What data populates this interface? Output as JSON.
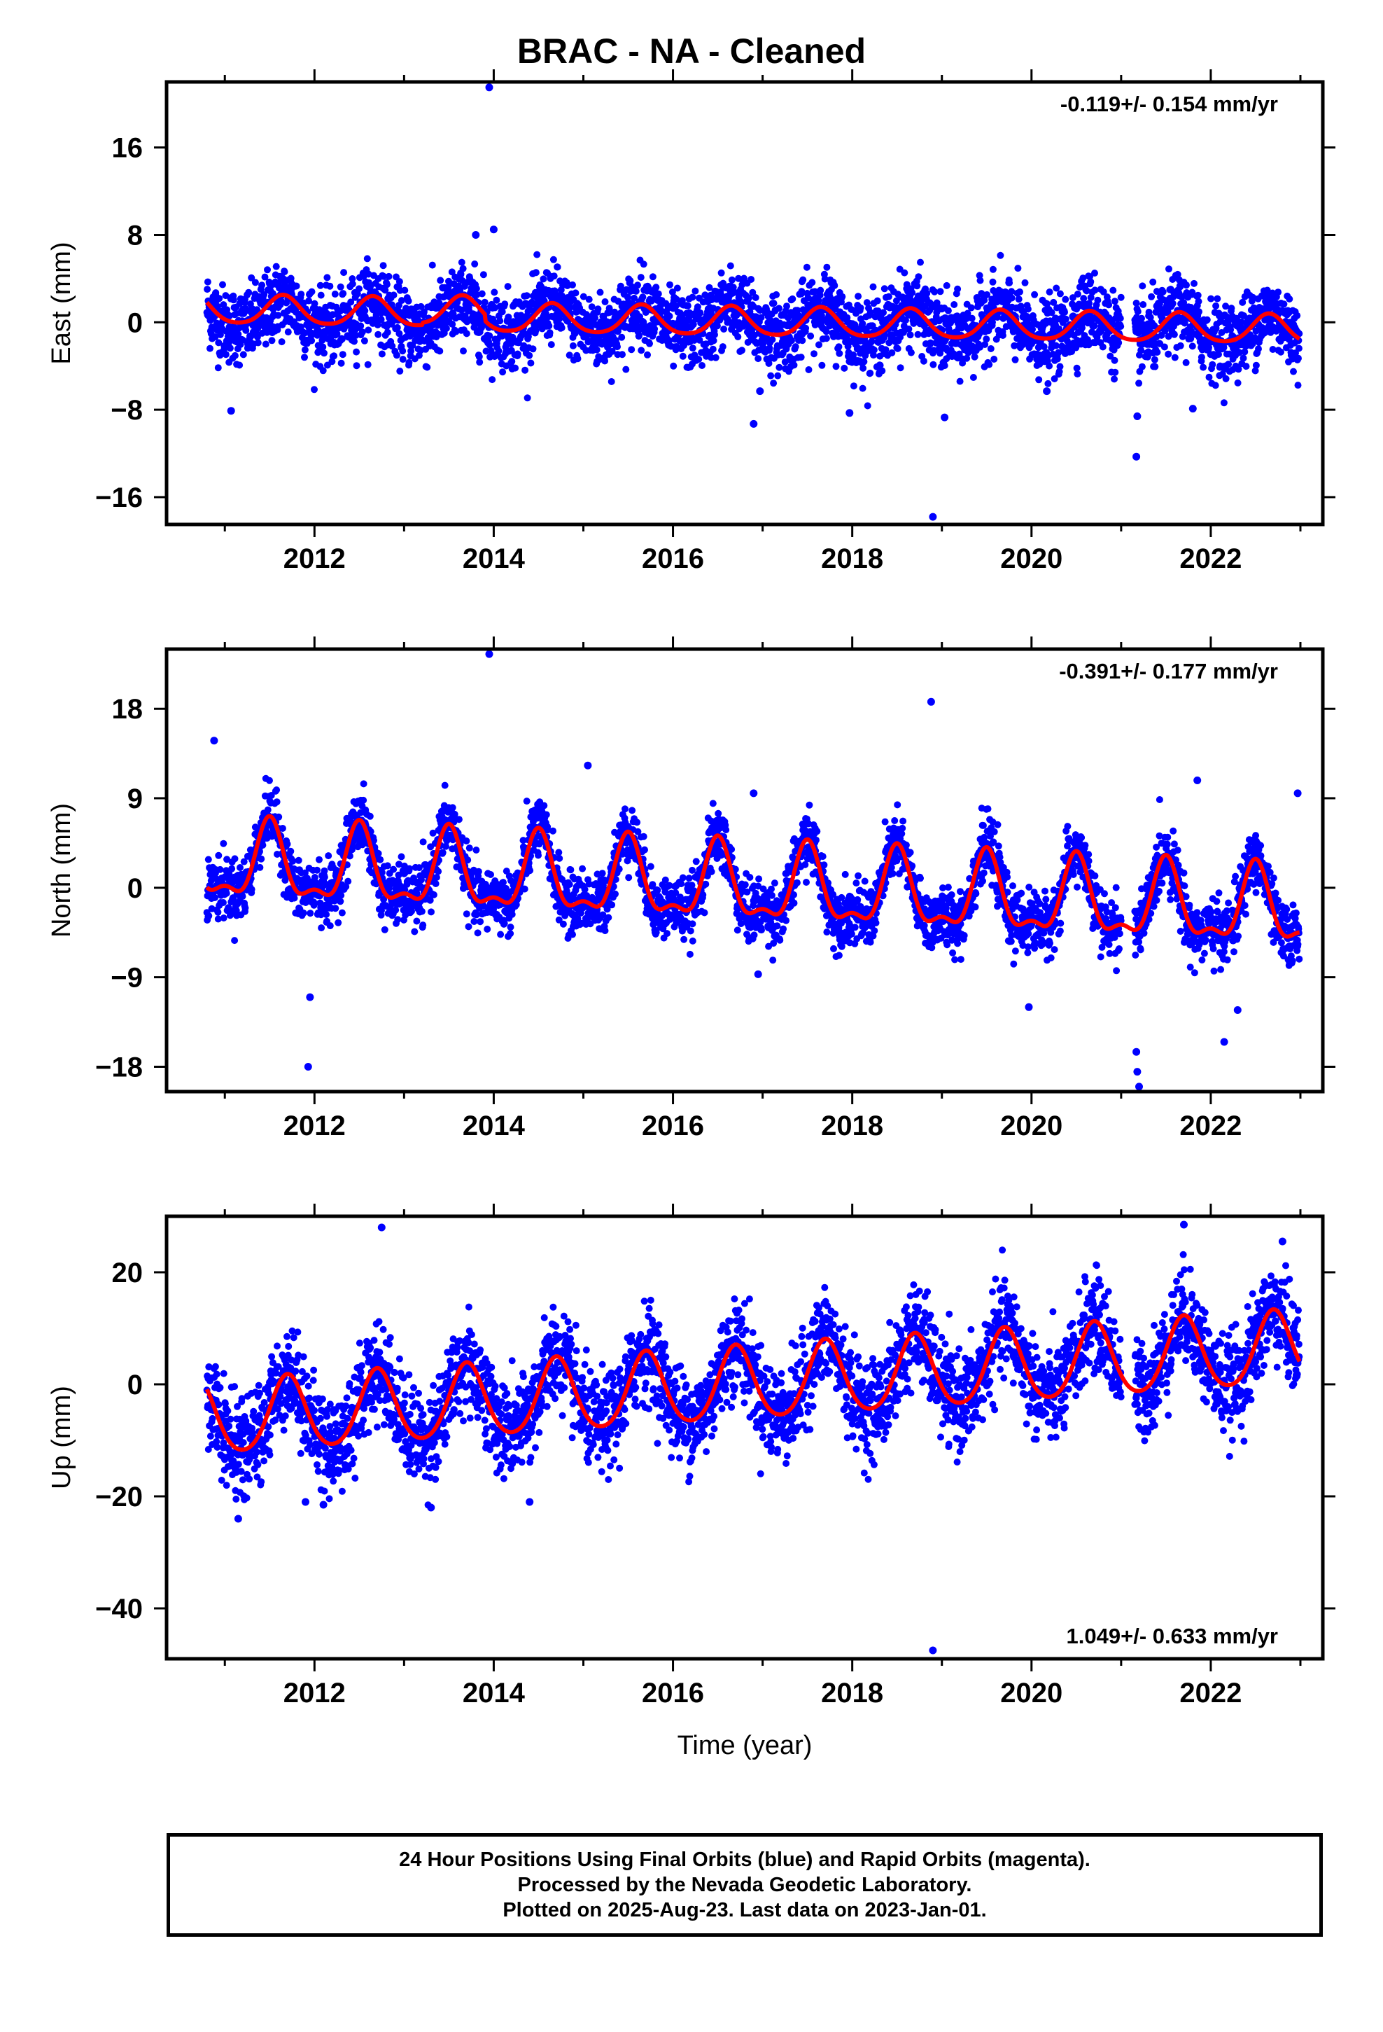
{
  "page": {
    "title": "BRAC  - NA - Cleaned",
    "xlabel": "Time (year)"
  },
  "footer": {
    "lines": [
      "24 Hour Positions Using Final Orbits (blue) and Rapid Orbits (magenta).",
      "Processed by the Nevada Geodetic Laboratory.",
      "Plotted on 2025-Aug-23. Last data on 2023-Jan-01."
    ]
  },
  "colors": {
    "points": "#0000ff",
    "model": "#ff0000",
    "axis": "#000000"
  },
  "chart_data": [
    {
      "type": "scatter",
      "component": "East",
      "ylabel": "East (mm)",
      "rate_text": "-0.119+/- 0.154 mm/yr",
      "rate_position": "top-right",
      "xlim": [
        2010.35,
        2023.25
      ],
      "ylim": [
        -18.5,
        22.0
      ],
      "xticks": [
        2012,
        2014,
        2016,
        2018,
        2020,
        2022
      ],
      "yticks": [
        16,
        8,
        0,
        -8,
        -16
      ],
      "ytick_labels": [
        "16",
        "8",
        "0",
        "−8",
        "−16"
      ],
      "series": [
        {
          "kind": "daily-positions",
          "x_range": [
            2010.8,
            2022.99
          ],
          "gap": [
            2021.0,
            2021.15
          ],
          "scatter_rms": 1.7,
          "trend_rate": -0.119,
          "annual_amplitude": 1.3,
          "annual_peak_phase": 0.65,
          "semiannual_amplitude": 0.2,
          "outliers": [
            [
              2013.95,
              21.5
            ],
            [
              2014.0,
              8.5
            ],
            [
              2013.8,
              8.0
            ],
            [
              2011.07,
              -8.1
            ],
            [
              2016.9,
              -9.3
            ],
            [
              2017.97,
              -8.3
            ],
            [
              2018.9,
              -17.8
            ],
            [
              2019.03,
              -8.7
            ],
            [
              2021.17,
              -12.3
            ],
            [
              2021.18,
              -8.6
            ],
            [
              2021.8,
              -7.9
            ],
            [
              2016.97,
              -6.3
            ],
            [
              2020.17,
              -6.3
            ]
          ]
        },
        {
          "kind": "model",
          "pieces": [
            {
              "x_range": [
                2010.8,
                2013.2
              ],
              "offset": 0.4
            },
            {
              "x_range": [
                2013.2,
                2013.9
              ],
              "offset": 0.6
            },
            {
              "x_range": [
                2013.9,
                2022.99
              ],
              "offset": 0.0
            }
          ]
        }
      ]
    },
    {
      "type": "scatter",
      "component": "North",
      "ylabel": "North (mm)",
      "rate_text": "-0.391+/- 0.177 mm/yr",
      "rate_position": "top-right",
      "xlim": [
        2010.35,
        2023.25
      ],
      "ylim": [
        -20.5,
        24.0
      ],
      "xticks": [
        2012,
        2014,
        2016,
        2018,
        2020,
        2022
      ],
      "yticks": [
        18,
        9,
        0,
        -9,
        -18
      ],
      "ytick_labels": [
        "18",
        "9",
        "0",
        "−9",
        "−18"
      ],
      "series": [
        {
          "kind": "daily-positions",
          "x_range": [
            2010.8,
            2022.99
          ],
          "gap": [
            2021.0,
            2021.15
          ],
          "scatter_rms": 1.5,
          "trend_rate": -0.391,
          "annual_amplitude": 3.6,
          "annual_peak_phase": 0.5,
          "semiannual_amplitude": 1.5,
          "outliers": [
            [
              2013.95,
              23.5
            ],
            [
              2010.88,
              14.8
            ],
            [
              2015.05,
              12.3
            ],
            [
              2018.88,
              18.7
            ],
            [
              2021.85,
              10.8
            ],
            [
              2016.9,
              9.5
            ],
            [
              2022.97,
              9.5
            ],
            [
              2011.95,
              -11.0
            ],
            [
              2011.93,
              -18.0
            ],
            [
              2021.2,
              -20.0
            ],
            [
              2021.18,
              -18.5
            ],
            [
              2021.17,
              -16.5
            ],
            [
              2016.95,
              -8.7
            ],
            [
              2019.97,
              -12.0
            ],
            [
              2022.15,
              -15.5
            ],
            [
              2022.3,
              -12.3
            ]
          ]
        },
        {
          "kind": "model",
          "pieces": [
            {
              "x_range": [
                2010.8,
                2021.0
              ],
              "offset": 0.0
            },
            {
              "x_range": [
                2021.0,
                2021.2
              ],
              "offset": 0.0
            },
            {
              "x_range": [
                2021.2,
                2022.99
              ],
              "offset": 0.0
            }
          ]
        }
      ]
    },
    {
      "type": "scatter",
      "component": "Up",
      "ylabel": "Up (mm)",
      "rate_text": "1.049+/- 0.633 mm/yr",
      "rate_position": "bottom-right",
      "xlim": [
        2010.35,
        2023.25
      ],
      "ylim": [
        -49.0,
        30.0
      ],
      "xticks": [
        2012,
        2014,
        2016,
        2018,
        2020,
        2022
      ],
      "yticks": [
        20,
        0,
        -20,
        -40
      ],
      "ytick_labels": [
        "20",
        "0",
        "−20",
        "−40"
      ],
      "series": [
        {
          "kind": "daily-positions",
          "x_range": [
            2010.8,
            2022.99
          ],
          "gap": [
            2021.0,
            2021.15
          ],
          "scatter_rms": 4.2,
          "trend_rate": 1.049,
          "annual_amplitude": 6.5,
          "annual_peak_phase": 0.7,
          "semiannual_amplitude": 0.8,
          "outliers": [
            [
              2012.75,
              28.0
            ],
            [
              2021.7,
              28.5
            ],
            [
              2022.8,
              25.5
            ],
            [
              2018.9,
              -47.5
            ],
            [
              2011.15,
              -24.0
            ],
            [
              2013.3,
              -22.0
            ],
            [
              2014.4,
              -21.0
            ],
            [
              2011.9,
              -21.0
            ],
            [
              2012.1,
              -21.5
            ]
          ]
        },
        {
          "kind": "model",
          "pieces": [
            {
              "x_range": [
                2010.8,
                2022.99
              ],
              "offset": 0.0
            }
          ]
        }
      ]
    }
  ]
}
